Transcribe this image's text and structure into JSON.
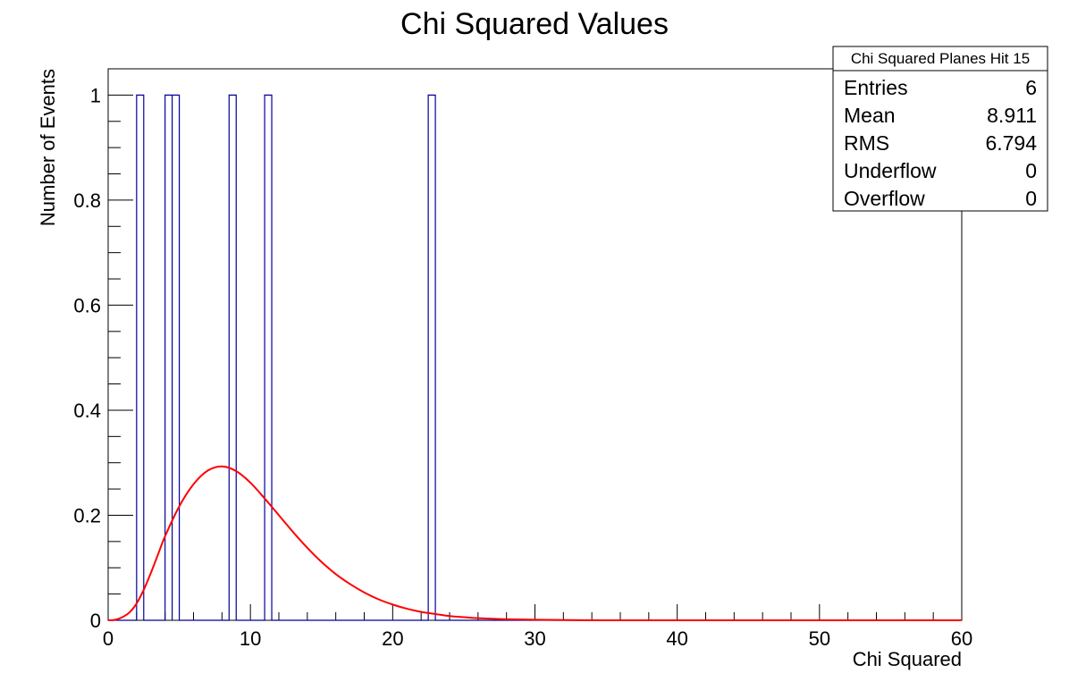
{
  "chart_data": {
    "type": "bar",
    "title": "Chi Squared Values",
    "xlabel": "Chi Squared",
    "ylabel": "Number of Events",
    "xlim": [
      0,
      60
    ],
    "ylim": [
      0,
      1.05
    ],
    "x_tick_labels": [
      "0",
      "10",
      "20",
      "30",
      "40",
      "50",
      "60"
    ],
    "y_tick_labels": [
      "0",
      "0.2",
      "0.4",
      "0.6",
      "0.8",
      "1"
    ],
    "grid": false,
    "series": [
      {
        "kind": "histogram",
        "color": "#000099",
        "bin_width": 0.5,
        "bins": [
          {
            "x_low": 2.0,
            "x_high": 2.5,
            "count": 1
          },
          {
            "x_low": 4.0,
            "x_high": 4.5,
            "count": 1
          },
          {
            "x_low": 4.5,
            "x_high": 5.0,
            "count": 1
          },
          {
            "x_low": 8.5,
            "x_high": 9.0,
            "count": 1
          },
          {
            "x_low": 11.0,
            "x_high": 11.5,
            "count": 1
          },
          {
            "x_low": 22.5,
            "x_high": 23.0,
            "count": 1
          }
        ]
      },
      {
        "kind": "curve",
        "color": "#ff0000",
        "x": [
          0,
          0.5,
          1,
          1.5,
          2,
          2.5,
          3,
          3.5,
          4,
          5,
          6,
          7,
          8,
          9,
          10,
          11,
          12,
          13,
          14,
          15,
          16,
          17,
          18,
          19,
          20,
          21,
          22,
          23,
          24,
          25,
          26,
          28,
          30,
          35,
          40,
          45,
          50,
          55,
          60
        ],
        "y": [
          0,
          0.001,
          0.006,
          0.015,
          0.032,
          0.058,
          0.09,
          0.125,
          0.16,
          0.217,
          0.259,
          0.285,
          0.293,
          0.284,
          0.262,
          0.232,
          0.2,
          0.168,
          0.138,
          0.111,
          0.088,
          0.069,
          0.053,
          0.04,
          0.03,
          0.022,
          0.016,
          0.012,
          0.008,
          0.006,
          0.004,
          0.002,
          0.001,
          0,
          0,
          0,
          0,
          0,
          0
        ]
      }
    ]
  },
  "stats_box": {
    "title": "Chi Squared Planes Hit 15",
    "rows": [
      {
        "label": "Entries",
        "value": "6"
      },
      {
        "label": "Mean",
        "value": "8.911"
      },
      {
        "label": "RMS",
        "value": "6.794"
      },
      {
        "label": "Underflow",
        "value": "0"
      },
      {
        "label": "Overflow",
        "value": "0"
      }
    ]
  }
}
